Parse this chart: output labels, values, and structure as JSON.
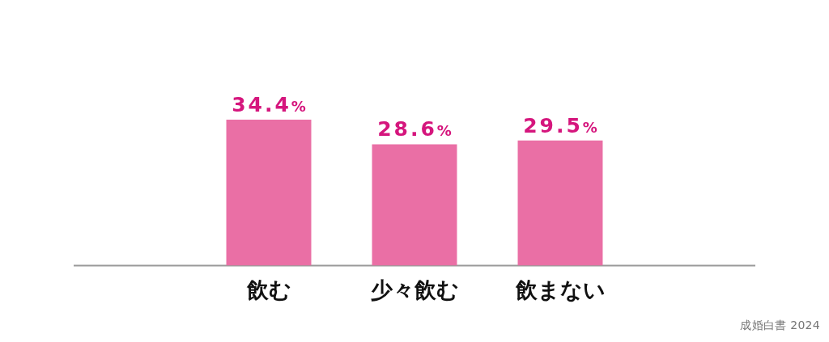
{
  "chart_data": {
    "type": "bar",
    "categories": [
      "飲む",
      "少々飲む",
      "飲まない"
    ],
    "values": [
      34.4,
      28.6,
      29.5
    ],
    "value_labels": [
      "34.4%",
      "28.6%",
      "29.5%"
    ],
    "color": "#ea6fa5",
    "tick_labels": "x",
    "annotations": [
      "成婚白書 2024"
    ]
  }
}
